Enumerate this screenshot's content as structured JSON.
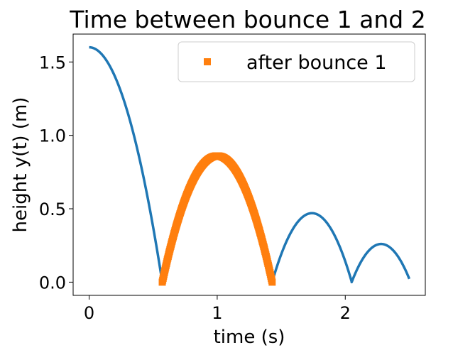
{
  "chart_data": {
    "type": "line",
    "title": "Time between bounce 1 and 2",
    "xlabel": "time (s)",
    "ylabel": "height y(t) (m)",
    "xlim": [
      -0.125,
      2.625
    ],
    "ylim": [
      -0.09,
      1.69
    ],
    "xticks": [
      0,
      1,
      2
    ],
    "xtick_labels": [
      "0",
      "1",
      "2"
    ],
    "yticks": [
      0.0,
      0.5,
      1.0,
      1.5
    ],
    "ytick_labels": [
      "0.0",
      "0.5",
      "1.0",
      "1.5"
    ],
    "grid": false,
    "legend_position": "top-right",
    "colors": {
      "trajectory": "#1f77b4",
      "after_bounce": "#ff7f0e"
    },
    "series": [
      {
        "style": "line",
        "segments": [
          {
            "t_start": 0.0,
            "t_end": 0.571,
            "peak_t": 0.0,
            "peak_y": 1.6
          },
          {
            "t_start": 0.571,
            "t_end": 1.429,
            "peak_t": 1.0,
            "peak_y": 0.86
          },
          {
            "t_start": 1.429,
            "t_end": 2.05,
            "peak_t": 1.74,
            "peak_y": 0.47
          },
          {
            "t_start": 2.05,
            "t_end": 2.5,
            "peak_t": 2.28,
            "peak_y": 0.26
          }
        ]
      },
      {
        "name": "after bounce 1",
        "style": "square-markers",
        "t_start": 0.571,
        "t_end": 1.429,
        "peak_t": 1.0,
        "peak_y": 0.86
      }
    ]
  }
}
